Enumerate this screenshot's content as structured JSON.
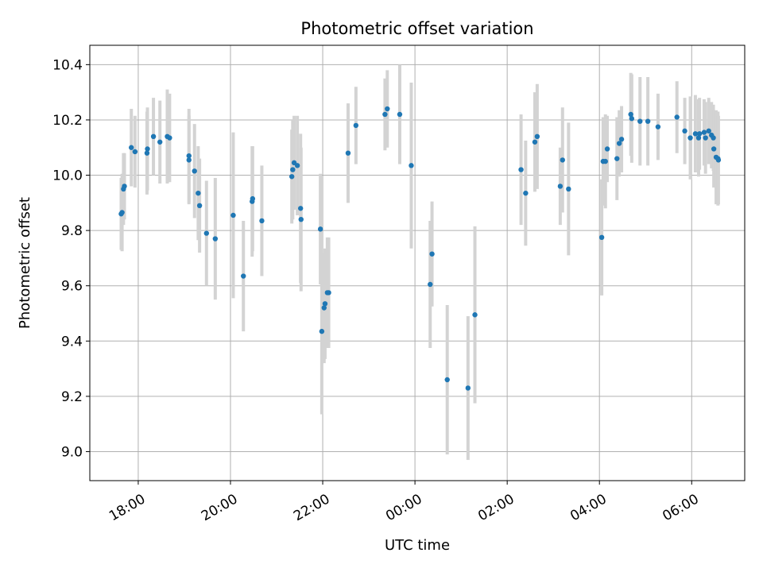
{
  "chart_data": {
    "type": "scatter",
    "title": "Photometric offset variation",
    "xlabel": "UTC time",
    "ylabel": "Photometric offset",
    "grid": true,
    "x_unit": "UTC time, hours (values above 24 fall after midnight)",
    "xlim": [
      16.95,
      31.15
    ],
    "ylim": [
      8.895,
      10.47
    ],
    "x_ticks": [
      {
        "value": 18,
        "label": "18:00"
      },
      {
        "value": 20,
        "label": "20:00"
      },
      {
        "value": 22,
        "label": "22:00"
      },
      {
        "value": 24,
        "label": "00:00"
      },
      {
        "value": 26,
        "label": "02:00"
      },
      {
        "value": 28,
        "label": "04:00"
      },
      {
        "value": 30,
        "label": "06:00"
      }
    ],
    "y_ticks": [
      {
        "value": 9.0,
        "label": "9.0"
      },
      {
        "value": 9.2,
        "label": "9.2"
      },
      {
        "value": 9.4,
        "label": "9.4"
      },
      {
        "value": 9.6,
        "label": "9.6"
      },
      {
        "value": 9.8,
        "label": "9.8"
      },
      {
        "value": 10.0,
        "label": "10.0"
      },
      {
        "value": 10.2,
        "label": "10.2"
      },
      {
        "value": 10.4,
        "label": "10.4"
      }
    ],
    "colors": {
      "points": "#1f77b4",
      "error_bars": "#d3d3d3",
      "grid": "#b0b0b0"
    },
    "series": [
      {
        "x": [
          17.63,
          17.65,
          17.68,
          17.7,
          17.85,
          17.93,
          18.19,
          18.2,
          18.33,
          18.47,
          18.63,
          18.68,
          19.1,
          19.1,
          19.22,
          19.3,
          19.33,
          19.48,
          19.67,
          20.06,
          20.28,
          20.47,
          20.48,
          20.68,
          21.33,
          21.35,
          21.38,
          21.45,
          21.52,
          21.53,
          21.95,
          21.98,
          22.03,
          22.05,
          22.1,
          22.13,
          22.55,
          22.72,
          23.35,
          23.4,
          23.67,
          23.92,
          24.33,
          24.37,
          24.7,
          25.15,
          25.3,
          26.3,
          26.4,
          26.6,
          26.65,
          27.15,
          27.2,
          27.33,
          28.05,
          28.08,
          28.13,
          28.17,
          28.38,
          28.43,
          28.48,
          28.68,
          28.7,
          28.88,
          29.05,
          29.27,
          29.68,
          29.85,
          29.97,
          30.08,
          30.15,
          30.17,
          30.27,
          30.3,
          30.37,
          30.43,
          30.47,
          30.48,
          30.53,
          30.57,
          30.58
        ],
        "y": [
          9.86,
          9.865,
          9.95,
          9.96,
          10.1,
          10.085,
          10.08,
          10.095,
          10.14,
          10.12,
          10.14,
          10.135,
          10.07,
          10.055,
          10.015,
          9.935,
          9.89,
          9.79,
          9.77,
          9.855,
          9.635,
          9.905,
          9.915,
          9.835,
          9.995,
          10.02,
          10.045,
          10.035,
          9.88,
          9.84,
          9.805,
          9.435,
          9.52,
          9.535,
          9.575,
          9.575,
          10.08,
          10.18,
          10.22,
          10.24,
          10.22,
          10.035,
          9.605,
          9.715,
          9.26,
          9.23,
          9.495,
          10.02,
          9.935,
          10.12,
          10.14,
          9.96,
          10.055,
          9.95,
          9.775,
          10.05,
          10.05,
          10.095,
          10.06,
          10.115,
          10.13,
          10.22,
          10.205,
          10.195,
          10.195,
          10.175,
          10.21,
          10.16,
          10.135,
          10.15,
          10.135,
          10.15,
          10.155,
          10.135,
          10.16,
          10.145,
          10.135,
          10.095,
          10.065,
          10.06,
          10.055
        ],
        "err": [
          0.13,
          0.14,
          0.13,
          0.12,
          0.14,
          0.13,
          0.15,
          0.15,
          0.14,
          0.15,
          0.17,
          0.16,
          0.17,
          0.16,
          0.17,
          0.17,
          0.17,
          0.19,
          0.22,
          0.3,
          0.2,
          0.2,
          0.19,
          0.2,
          0.17,
          0.18,
          0.17,
          0.18,
          0.27,
          0.26,
          0.2,
          0.3,
          0.2,
          0.2,
          0.2,
          0.2,
          0.18,
          0.14,
          0.13,
          0.14,
          0.18,
          0.3,
          0.23,
          0.19,
          0.27,
          0.26,
          0.32,
          0.2,
          0.19,
          0.18,
          0.19,
          0.14,
          0.19,
          0.24,
          0.21,
          0.16,
          0.17,
          0.12,
          0.15,
          0.12,
          0.12,
          0.15,
          0.16,
          0.16,
          0.16,
          0.12,
          0.13,
          0.12,
          0.15,
          0.14,
          0.14,
          0.13,
          0.12,
          0.13,
          0.12,
          0.12,
          0.12,
          0.14,
          0.17,
          0.17,
          0.16
        ]
      }
    ]
  }
}
